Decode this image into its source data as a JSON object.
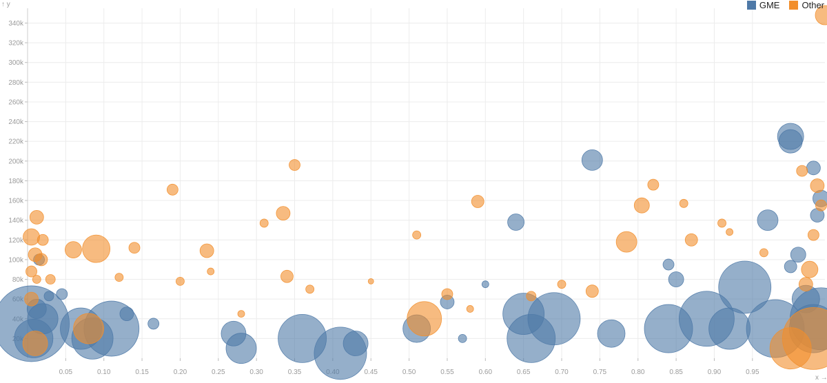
{
  "chart_data": {
    "type": "scatter",
    "title": "",
    "xlabel": "x",
    "ylabel": "y",
    "xlim": [
      0.0,
      1.045
    ],
    "ylim": [
      0,
      355000
    ],
    "x_ticks": [
      "0.05",
      "0.10",
      "0.15",
      "0.20",
      "0.25",
      "0.30",
      "0.35",
      "0.40",
      "0.45",
      "0.50",
      "0.55",
      "0.60",
      "0.65",
      "0.70",
      "0.75",
      "0.80",
      "0.85",
      "0.90",
      "0.95"
    ],
    "x_tick_values": [
      0.05,
      0.1,
      0.15,
      0.2,
      0.25,
      0.3,
      0.35,
      0.4,
      0.45,
      0.5,
      0.55,
      0.6,
      0.65,
      0.7,
      0.75,
      0.8,
      0.85,
      0.9,
      0.95
    ],
    "y_ticks": [
      "20k",
      "40k",
      "60k",
      "80k",
      "100k",
      "120k",
      "140k",
      "160k",
      "180k",
      "200k",
      "220k",
      "240k",
      "260k",
      "280k",
      "300k",
      "320k",
      "340k"
    ],
    "y_tick_values": [
      20000,
      40000,
      60000,
      80000,
      100000,
      120000,
      140000,
      160000,
      180000,
      200000,
      220000,
      240000,
      260000,
      280000,
      300000,
      320000,
      340000
    ],
    "grid": true,
    "legend_position": "top-right",
    "series": [
      {
        "name": "GME",
        "color": "#4e79a7",
        "points": [
          {
            "x": 0.005,
            "y": 35000,
            "r": 55
          },
          {
            "x": 0.008,
            "y": 20000,
            "r": 28
          },
          {
            "x": 0.012,
            "y": 50000,
            "r": 14
          },
          {
            "x": 0.015,
            "y": 100000,
            "r": 8
          },
          {
            "x": 0.02,
            "y": 40000,
            "r": 22
          },
          {
            "x": 0.028,
            "y": 63000,
            "r": 7
          },
          {
            "x": 0.045,
            "y": 65000,
            "r": 8
          },
          {
            "x": 0.07,
            "y": 30000,
            "r": 30
          },
          {
            "x": 0.085,
            "y": 20000,
            "r": 30
          },
          {
            "x": 0.11,
            "y": 30000,
            "r": 40
          },
          {
            "x": 0.13,
            "y": 45000,
            "r": 10
          },
          {
            "x": 0.165,
            "y": 35000,
            "r": 8
          },
          {
            "x": 0.27,
            "y": 25000,
            "r": 18
          },
          {
            "x": 0.28,
            "y": 10000,
            "r": 22
          },
          {
            "x": 0.36,
            "y": 20000,
            "r": 35
          },
          {
            "x": 0.41,
            "y": 5000,
            "r": 38
          },
          {
            "x": 0.43,
            "y": 15000,
            "r": 18
          },
          {
            "x": 0.51,
            "y": 30000,
            "r": 20
          },
          {
            "x": 0.55,
            "y": 57000,
            "r": 10
          },
          {
            "x": 0.57,
            "y": 20000,
            "r": 6
          },
          {
            "x": 0.6,
            "y": 75000,
            "r": 5
          },
          {
            "x": 0.64,
            "y": 138000,
            "r": 12
          },
          {
            "x": 0.65,
            "y": 45000,
            "r": 30
          },
          {
            "x": 0.66,
            "y": 20000,
            "r": 35
          },
          {
            "x": 0.69,
            "y": 40000,
            "r": 38
          },
          {
            "x": 0.74,
            "y": 201000,
            "r": 15
          },
          {
            "x": 0.765,
            "y": 25000,
            "r": 20
          },
          {
            "x": 0.85,
            "y": 80000,
            "r": 11
          },
          {
            "x": 0.84,
            "y": 95000,
            "r": 8
          },
          {
            "x": 0.84,
            "y": 30000,
            "r": 35
          },
          {
            "x": 0.89,
            "y": 40000,
            "r": 40
          },
          {
            "x": 0.92,
            "y": 30000,
            "r": 30
          },
          {
            "x": 0.94,
            "y": 72000,
            "r": 38
          },
          {
            "x": 0.97,
            "y": 140000,
            "r": 15
          },
          {
            "x": 0.98,
            "y": 30000,
            "r": 42
          },
          {
            "x": 1.0,
            "y": 225000,
            "r": 19
          },
          {
            "x": 1.0,
            "y": 220000,
            "r": 17
          },
          {
            "x": 1.03,
            "y": 193000,
            "r": 10
          },
          {
            "x": 1.04,
            "y": 162000,
            "r": 12
          },
          {
            "x": 1.04,
            "y": 40000,
            "r": 45
          },
          {
            "x": 1.035,
            "y": 145000,
            "r": 10
          },
          {
            "x": 1.01,
            "y": 105000,
            "r": 11
          },
          {
            "x": 1.02,
            "y": 60000,
            "r": 20
          },
          {
            "x": 1.0,
            "y": 93000,
            "r": 9
          },
          {
            "x": 1.03,
            "y": 30000,
            "r": 35
          }
        ]
      },
      {
        "name": "Other",
        "color": "#f28e2b",
        "points": [
          {
            "x": 0.012,
            "y": 143000,
            "r": 10
          },
          {
            "x": 0.005,
            "y": 123000,
            "r": 12
          },
          {
            "x": 0.02,
            "y": 120000,
            "r": 8
          },
          {
            "x": 0.01,
            "y": 105000,
            "r": 10
          },
          {
            "x": 0.005,
            "y": 88000,
            "r": 8
          },
          {
            "x": 0.018,
            "y": 100000,
            "r": 9
          },
          {
            "x": 0.012,
            "y": 80000,
            "r": 6
          },
          {
            "x": 0.03,
            "y": 80000,
            "r": 7
          },
          {
            "x": 0.005,
            "y": 60000,
            "r": 10
          },
          {
            "x": 0.01,
            "y": 15000,
            "r": 18
          },
          {
            "x": 0.06,
            "y": 110000,
            "r": 12
          },
          {
            "x": 0.09,
            "y": 111000,
            "r": 20
          },
          {
            "x": 0.14,
            "y": 112000,
            "r": 8
          },
          {
            "x": 0.12,
            "y": 82000,
            "r": 6
          },
          {
            "x": 0.08,
            "y": 30000,
            "r": 22
          },
          {
            "x": 0.19,
            "y": 171000,
            "r": 8
          },
          {
            "x": 0.235,
            "y": 109000,
            "r": 10
          },
          {
            "x": 0.31,
            "y": 137000,
            "r": 6
          },
          {
            "x": 0.335,
            "y": 147000,
            "r": 10
          },
          {
            "x": 0.35,
            "y": 196000,
            "r": 8
          },
          {
            "x": 0.34,
            "y": 83000,
            "r": 9
          },
          {
            "x": 0.37,
            "y": 70000,
            "r": 6
          },
          {
            "x": 0.45,
            "y": 78000,
            "r": 4
          },
          {
            "x": 0.51,
            "y": 125000,
            "r": 6
          },
          {
            "x": 0.52,
            "y": 40000,
            "r": 25
          },
          {
            "x": 0.59,
            "y": 159000,
            "r": 9
          },
          {
            "x": 0.58,
            "y": 50000,
            "r": 5
          },
          {
            "x": 0.785,
            "y": 118000,
            "r": 15
          },
          {
            "x": 0.805,
            "y": 155000,
            "r": 11
          },
          {
            "x": 0.82,
            "y": 176000,
            "r": 8
          },
          {
            "x": 0.86,
            "y": 157000,
            "r": 6
          },
          {
            "x": 0.87,
            "y": 120000,
            "r": 9
          },
          {
            "x": 0.91,
            "y": 137000,
            "r": 6
          },
          {
            "x": 0.92,
            "y": 128000,
            "r": 5
          },
          {
            "x": 0.965,
            "y": 107000,
            "r": 6
          },
          {
            "x": 1.015,
            "y": 190000,
            "r": 8
          },
          {
            "x": 1.035,
            "y": 175000,
            "r": 10
          },
          {
            "x": 1.04,
            "y": 155000,
            "r": 8
          },
          {
            "x": 1.045,
            "y": 348000,
            "r": 14
          },
          {
            "x": 1.03,
            "y": 125000,
            "r": 8
          },
          {
            "x": 1.025,
            "y": 90000,
            "r": 12
          },
          {
            "x": 1.02,
            "y": 75000,
            "r": 10
          },
          {
            "x": 1.03,
            "y": 20000,
            "r": 45
          },
          {
            "x": 1.0,
            "y": 10000,
            "r": 30
          },
          {
            "x": 0.74,
            "y": 68000,
            "r": 9
          },
          {
            "x": 0.66,
            "y": 63000,
            "r": 7
          },
          {
            "x": 0.7,
            "y": 75000,
            "r": 6
          },
          {
            "x": 0.55,
            "y": 65000,
            "r": 8
          },
          {
            "x": 0.28,
            "y": 45000,
            "r": 5
          },
          {
            "x": 0.2,
            "y": 78000,
            "r": 6
          },
          {
            "x": 0.24,
            "y": 88000,
            "r": 5
          }
        ]
      }
    ]
  }
}
